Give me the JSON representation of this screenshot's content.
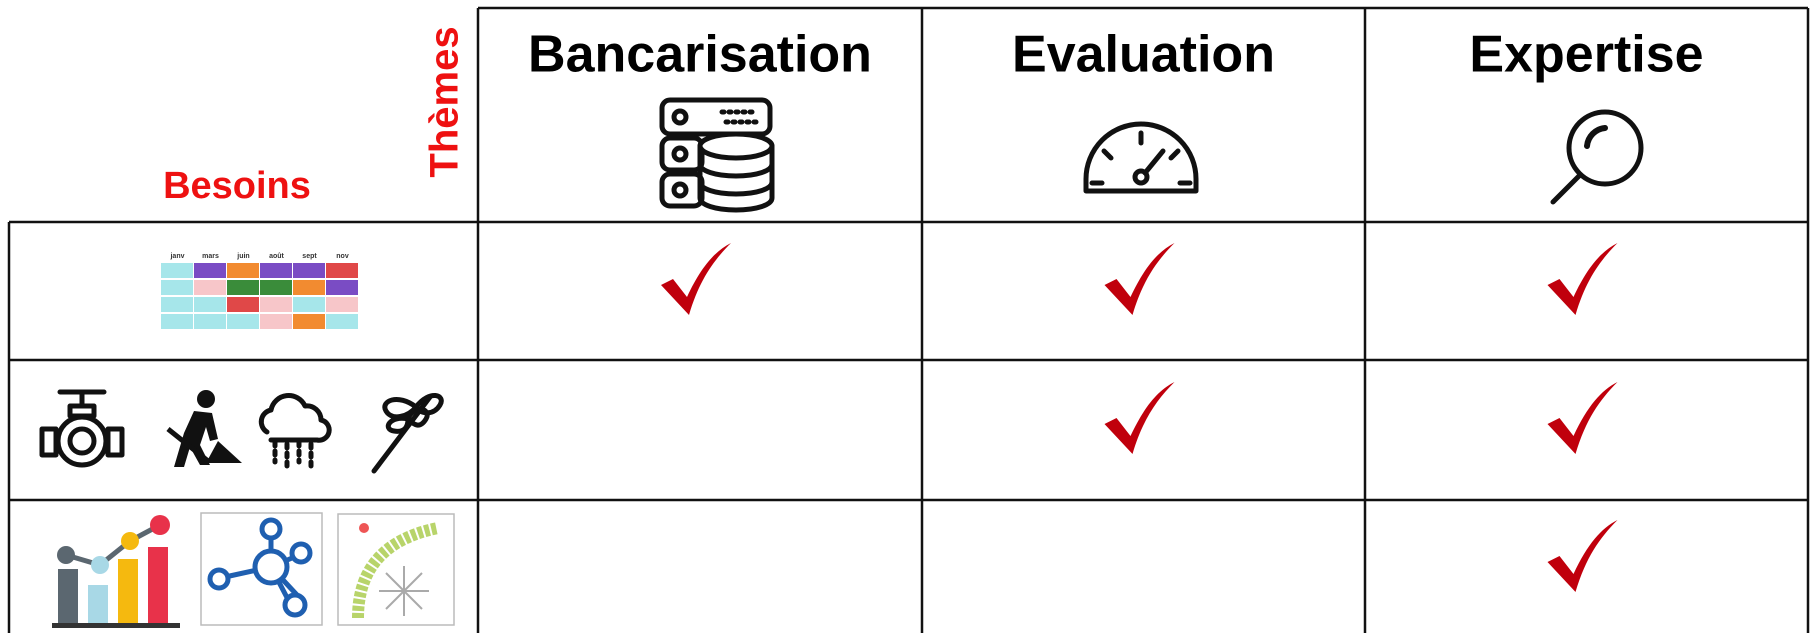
{
  "header": {
    "themes_label": "Thèmes",
    "needs_label": "Besoins",
    "columns": [
      "Bancarisation",
      "Evaluation",
      "Expertise"
    ]
  },
  "rows": [
    {
      "calendar_months": [
        "janv",
        "mars",
        "juin",
        "août",
        "sept",
        "nov"
      ],
      "checks": [
        true,
        true,
        true
      ]
    },
    {
      "checks": [
        false,
        true,
        true
      ]
    },
    {
      "checks": [
        false,
        false,
        true
      ]
    }
  ]
}
